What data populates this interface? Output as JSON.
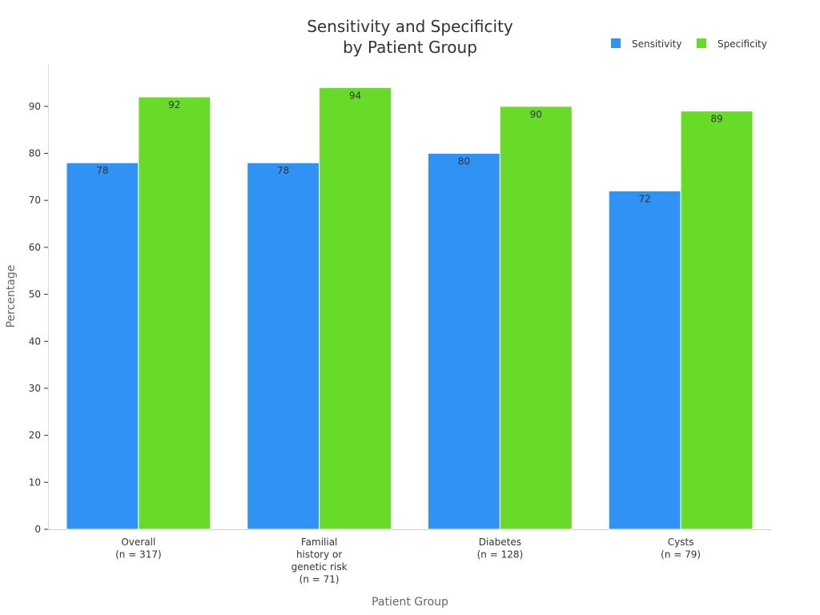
{
  "chart_data": {
    "type": "bar",
    "title_lines": [
      "Sensitivity and Specificity",
      "by Patient Group"
    ],
    "xlabel": "Patient Group",
    "ylabel": "Percentage",
    "ylim": [
      0,
      99
    ],
    "yticks": [
      0,
      10,
      20,
      30,
      40,
      50,
      60,
      70,
      80,
      90
    ],
    "categories": [
      [
        "Overall",
        "(n = 317)"
      ],
      [
        "Familial",
        "history or",
        "genetic risk",
        "(n = 71)"
      ],
      [
        "Diabetes",
        "(n = 128)"
      ],
      [
        "Cysts",
        "(n = 79)"
      ]
    ],
    "series": [
      {
        "name": "Sensitivity",
        "color": "#3192f5",
        "values": [
          78,
          78,
          80,
          72
        ]
      },
      {
        "name": "Specificity",
        "color": "#68db29",
        "values": [
          92,
          94,
          90,
          89
        ]
      }
    ],
    "legend_position": "top-right",
    "grid": false,
    "data_labels": true
  }
}
